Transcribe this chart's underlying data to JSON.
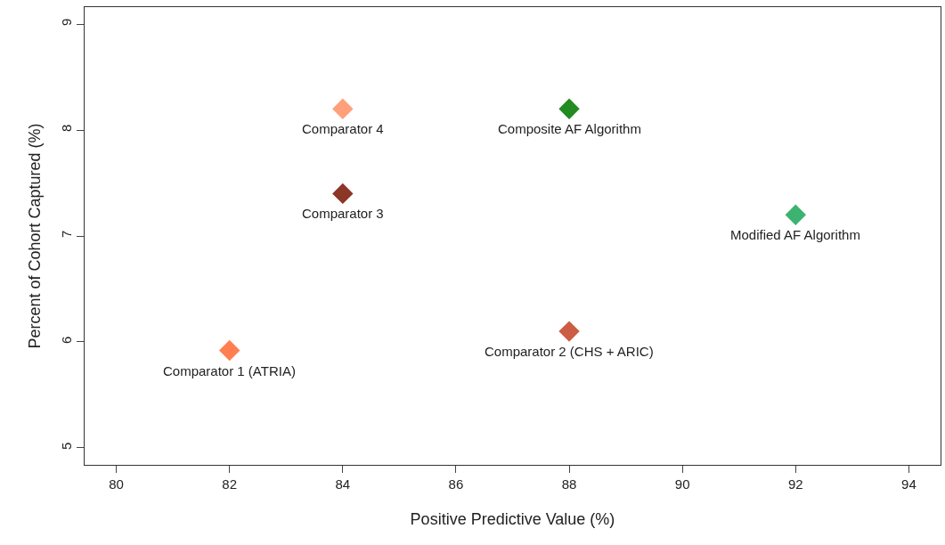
{
  "chart_data": {
    "type": "scatter",
    "xlabel": "Positive Predictive Value (%)",
    "ylabel": "Percent of Cohort Captured (%)",
    "x": [
      82,
      84,
      84,
      88,
      88,
      92
    ],
    "values": [
      5.92,
      8.2,
      7.4,
      8.2,
      6.1,
      7.2
    ],
    "colors": [
      "#ff7f50",
      "#ffa07a",
      "#8b3626",
      "#228b22",
      "#cd5c45",
      "#3cb371"
    ],
    "annotations": [
      {
        "text": "Comparator 1 (ATRIA)",
        "x": 82,
        "y": 5.92
      },
      {
        "text": "Comparator 4",
        "x": 84,
        "y": 8.2
      },
      {
        "text": "Comparator 3",
        "x": 84,
        "y": 7.4
      },
      {
        "text": "Composite AF Algorithm",
        "x": 88,
        "y": 8.2
      },
      {
        "text": "Comparator 2 (CHS + ARIC)",
        "x": 88,
        "y": 6.1
      },
      {
        "text": "Modified AF Algorithm",
        "x": 92,
        "y": 7.2
      }
    ],
    "xlim": [
      79.44,
      94.56
    ],
    "ylim": [
      4.84,
      9.16
    ],
    "xticks": [
      80,
      82,
      84,
      86,
      88,
      90,
      92,
      94
    ],
    "yticks": [
      5,
      6,
      7,
      8,
      9
    ],
    "marker": "diamond"
  }
}
